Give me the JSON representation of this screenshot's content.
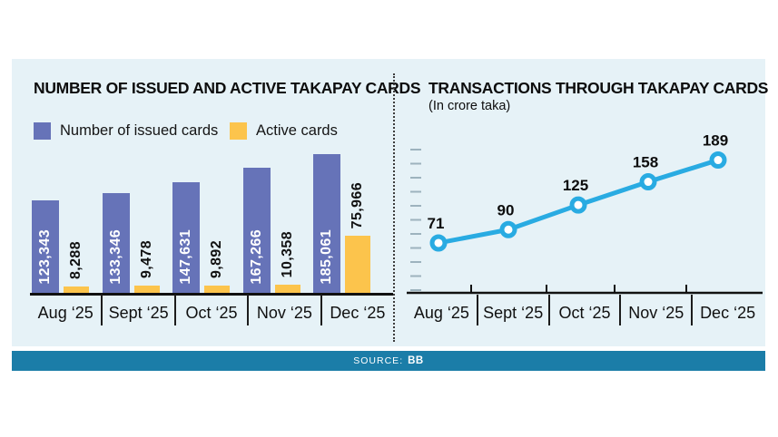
{
  "colors": {
    "panel_bg": "#e6f2f7",
    "bar_issued": "#6673b8",
    "bar_active": "#fcc44c",
    "line": "#29abe2",
    "axis": "#111111",
    "y_tick": "#9db3be",
    "source_bg": "#1b7da8"
  },
  "source_bar": {
    "label": "SOURCE:",
    "value": "BB"
  },
  "chart_data": [
    {
      "type": "bar",
      "title": "NUMBER OF ISSUED AND ACTIVE TAKAPAY CARDS",
      "categories": [
        "Aug ‘25",
        "Sept ‘25",
        "Oct ‘25",
        "Nov ‘25",
        "Dec ‘25"
      ],
      "legend_position": "top",
      "ylim": [
        0,
        185061
      ],
      "grid": false,
      "series": [
        {
          "name": "Number of issued cards",
          "color": "#6673b8",
          "values": [
            123343,
            133346,
            147631,
            167266,
            185061
          ],
          "labels": [
            "123,343",
            "133,346",
            "147,631",
            "167,266",
            "185,061"
          ],
          "label_style": "white-inside-vertical"
        },
        {
          "name": "Active cards",
          "color": "#fcc44c",
          "values": [
            8288,
            9478,
            9892,
            10358,
            75966
          ],
          "labels": [
            "8,288",
            "9,478",
            "9,892",
            "10,358",
            "75,966"
          ],
          "label_style": "black-above-vertical"
        }
      ]
    },
    {
      "type": "line",
      "title": "TRANSACTIONS THROUGH TAKAPAY CARDS",
      "subtitle": "(In crore taka)",
      "categories": [
        "Aug ‘25",
        "Sept ‘25",
        "Oct ‘25",
        "Nov ‘25",
        "Dec ‘25"
      ],
      "values": [
        71,
        90,
        125,
        158,
        189
      ],
      "ylim": [
        0,
        200
      ],
      "grid": false,
      "line_color": "#29abe2",
      "marker": "open-circle"
    }
  ]
}
